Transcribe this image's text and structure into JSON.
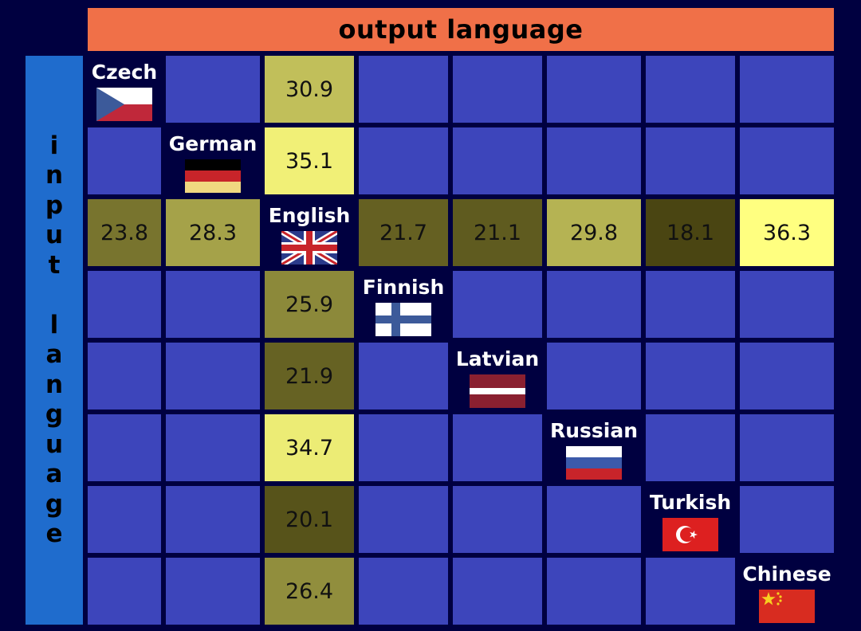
{
  "header": {
    "output_label": "output language",
    "input_label": "input language"
  },
  "languages": [
    {
      "name": "Czech",
      "flag": "czech-flag-icon"
    },
    {
      "name": "German",
      "flag": "german-flag-icon"
    },
    {
      "name": "English",
      "flag": "uk-flag-icon"
    },
    {
      "name": "Finnish",
      "flag": "finnish-flag-icon"
    },
    {
      "name": "Latvian",
      "flag": "latvian-flag-icon"
    },
    {
      "name": "Russian",
      "flag": "russian-flag-icon"
    },
    {
      "name": "Turkish",
      "flag": "turkish-flag-icon"
    },
    {
      "name": "Chinese",
      "flag": "chinese-flag-icon"
    }
  ],
  "colors": {
    "background": "#000040",
    "empty_cell": "#3d45bb",
    "output_header": "#f07048",
    "input_header": "#1f6ccd",
    "score_low": "#4a4512",
    "score_high": "#ffff80"
  },
  "score_range": [
    18,
    36.3
  ],
  "matrix": [
    [
      null,
      null,
      "30.9",
      null,
      null,
      null,
      null,
      null
    ],
    [
      null,
      null,
      "35.1",
      null,
      null,
      null,
      null,
      null
    ],
    [
      "23.8",
      "28.3",
      null,
      "21.7",
      "21.1",
      "29.8",
      "18.1",
      "36.3"
    ],
    [
      null,
      null,
      "25.9",
      null,
      null,
      null,
      null,
      null
    ],
    [
      null,
      null,
      "21.9",
      null,
      null,
      null,
      null,
      null
    ],
    [
      null,
      null,
      "34.7",
      null,
      null,
      null,
      null,
      null
    ],
    [
      null,
      null,
      "20.1",
      null,
      null,
      null,
      null,
      null
    ],
    [
      null,
      null,
      "26.4",
      null,
      null,
      null,
      null,
      null
    ]
  ]
}
